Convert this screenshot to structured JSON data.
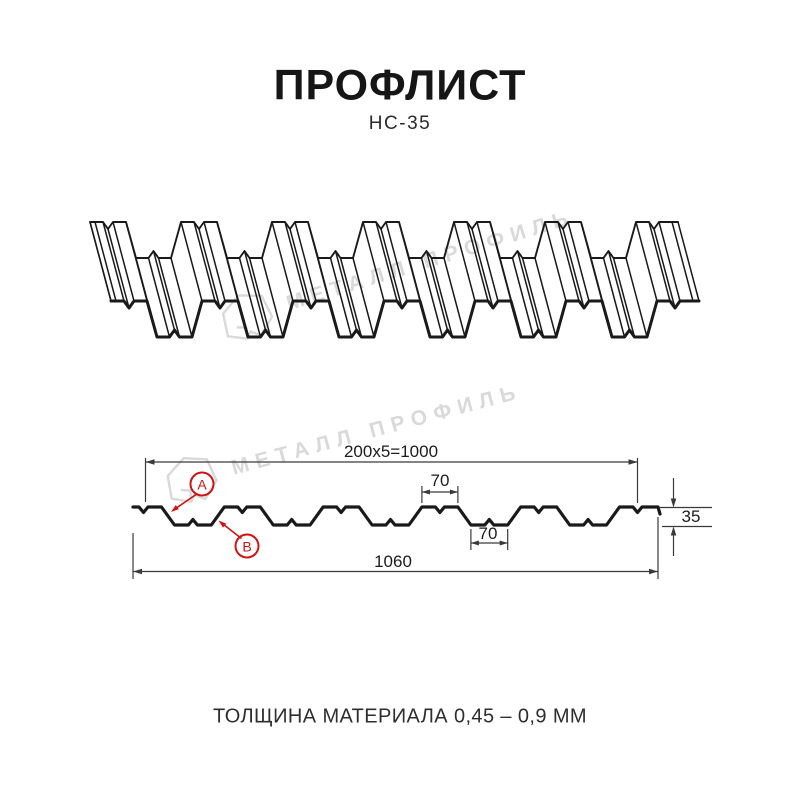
{
  "title": "ПРОФЛИСТ",
  "subtitle": "НС-35",
  "note": "ТОЛЩИНА МАТЕРИАЛА 0,45 – 0,9 ММ",
  "watermark": {
    "text": "МЕТАЛЛ ПРОФИЛЬ"
  },
  "section": {
    "dim_modules": "200x5=1000",
    "dim_crest_top": "70",
    "dim_valley_bottom": "70",
    "dim_height": "35",
    "dim_width_total": "1060",
    "label_a": "A",
    "label_b": "B"
  },
  "colors": {
    "line": "#1a1a1a",
    "dim": "#3a3a3a",
    "accent_red": "#d01414",
    "watermark": "#d9d9d9"
  }
}
